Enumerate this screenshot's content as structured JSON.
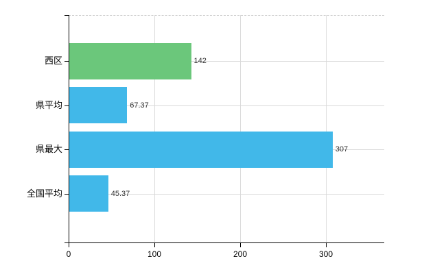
{
  "chart_data": {
    "type": "bar",
    "orientation": "horizontal",
    "title": "",
    "xlabel": "",
    "ylabel": "",
    "categories": [
      "西区",
      "県平均",
      "県最大",
      "全国平均"
    ],
    "values": [
      142,
      67.37,
      307,
      45.37
    ],
    "value_labels": [
      "142",
      "67.37",
      "307",
      "45.37"
    ],
    "bar_colors": [
      "#6bc77b",
      "#41b8e9",
      "#41b8e9",
      "#41b8e9"
    ],
    "x_ticks": [
      0,
      100,
      200,
      300
    ],
    "x_tick_labels": [
      "0",
      "100",
      "200",
      "300"
    ],
    "xlim": [
      0,
      368
    ],
    "grid": true,
    "legend": "none"
  },
  "style": {
    "background": "#ffffff",
    "axis_color": "#000000",
    "grid_color": "#d9d9d9",
    "top_border_color": "#cccccc",
    "value_label_color": "#333333",
    "category_label_color": "#000000",
    "green_bar_color": "#6bc77b",
    "blue_bar_color": "#41b8e9"
  }
}
